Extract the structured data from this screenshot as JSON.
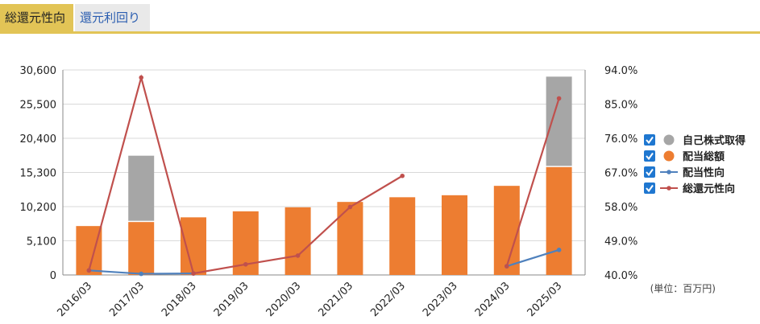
{
  "tabs": [
    {
      "label": "総還元性向",
      "active": true
    },
    {
      "label": "還元利回り",
      "active": false
    }
  ],
  "unit_label": "(単位：百万円)",
  "colors": {
    "accent": "#e2c456",
    "buyback": "#a6a6a6",
    "dividend": "#ed7d31",
    "payout_line": "#4f81bd",
    "total_return_line": "#c0504d",
    "checkbox": "#1f77d0"
  },
  "chart_data": {
    "type": "bar",
    "categories": [
      "2016/03",
      "2017/03",
      "2018/03",
      "2019/03",
      "2020/03",
      "2021/03",
      "2022/03",
      "2023/03",
      "2024/03",
      "2025/03"
    ],
    "left_axis": {
      "ticks": [
        "30,600",
        "25,500",
        "20,400",
        "15,300",
        "10,200",
        "5,100",
        "0"
      ],
      "ylim": [
        0,
        30600
      ]
    },
    "right_axis": {
      "ticks": [
        "94.0%",
        "85.0%",
        "76.0%",
        "67.0%",
        "58.0%",
        "49.0%",
        "40.0%"
      ],
      "ylim": [
        40,
        94
      ]
    },
    "legend": {
      "position": "right",
      "items": [
        {
          "label": "自己株式取得",
          "marker": "circle",
          "color_key": "buyback"
        },
        {
          "label": "配当総額",
          "marker": "circle",
          "color_key": "dividend"
        },
        {
          "label": "配当性向",
          "marker": "line",
          "color_key": "payout_line"
        },
        {
          "label": "総還元性向",
          "marker": "line",
          "color_key": "total_return_line"
        }
      ]
    },
    "series": [
      {
        "name": "配当総額",
        "kind": "bar",
        "color_key": "dividend",
        "values": [
          7300,
          7900,
          8600,
          9500,
          10100,
          10900,
          11600,
          11900,
          13300,
          16100
        ]
      },
      {
        "name": "自己株式取得",
        "kind": "bar-stacked",
        "color_key": "buyback",
        "values": [
          null,
          9900,
          null,
          null,
          null,
          null,
          null,
          null,
          null,
          13500
        ]
      },
      {
        "name": "配当性向",
        "kind": "line",
        "axis": "right",
        "color_key": "payout_line",
        "values": [
          41.2,
          40.3,
          40.4,
          null,
          null,
          null,
          null,
          null,
          42.3,
          46.6
        ]
      },
      {
        "name": "総還元性向",
        "kind": "line",
        "axis": "right",
        "color_key": "total_return_line",
        "values": [
          41.2,
          92.0,
          40.4,
          42.8,
          45.1,
          57.9,
          66.1,
          null,
          42.3,
          86.5
        ]
      }
    ]
  }
}
